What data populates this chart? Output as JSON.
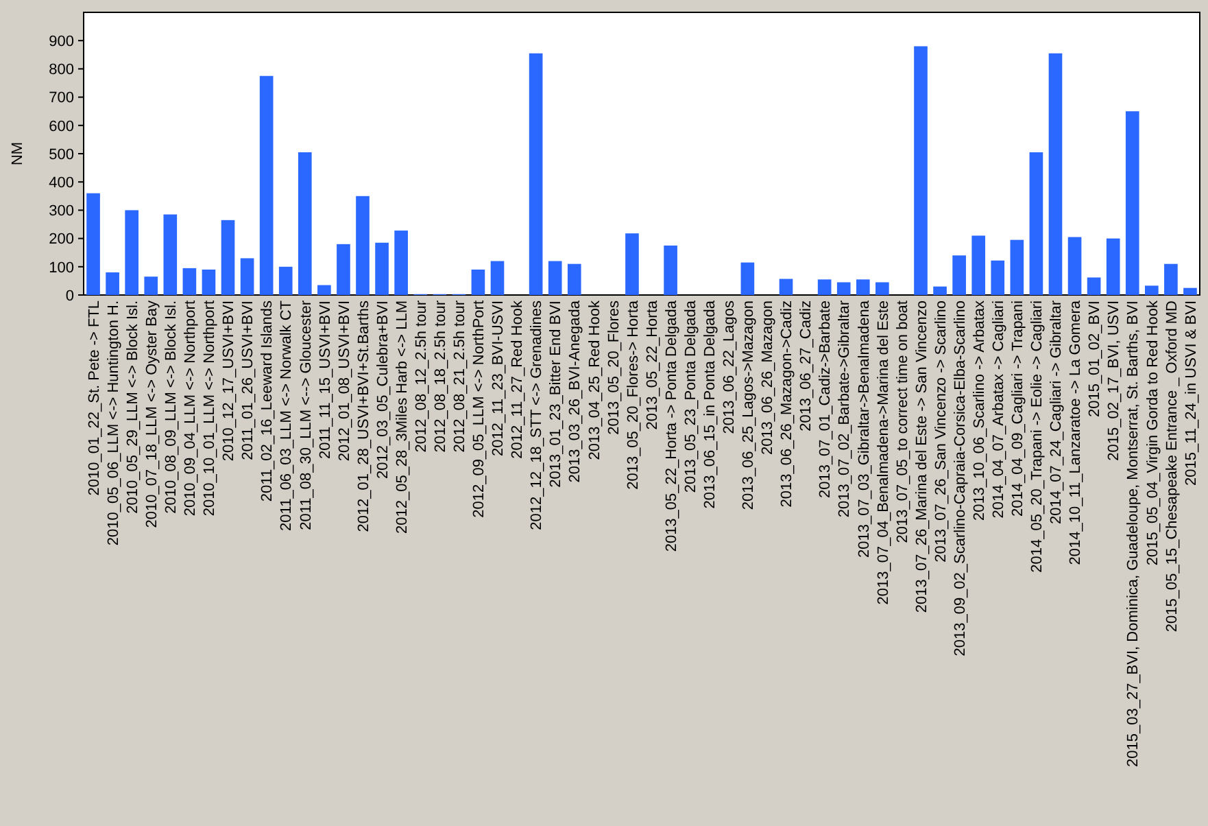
{
  "chart_data": {
    "type": "bar",
    "ylabel": "NM",
    "color": "#2a68ff",
    "ylim": [
      0,
      1000
    ],
    "yticks": [
      0,
      100,
      200,
      300,
      400,
      500,
      600,
      700,
      800,
      900
    ],
    "categories": [
      "2010_01_22_St. Pete -> FTL",
      "2010_05_06_LLM <-> Huntington H.",
      "2010_05_29_LLM <-> Block Isl.",
      "2010_07_18_LLM <-> Oyster Bay",
      "2010_08_09_LLM <-> Block Isl.",
      "2010_09_04_LLM <-> Northport",
      "2010_10_01_LLM <-> Northport",
      "2010_12_17_USVI+BVI",
      "2011_01_26_USVI+BVI",
      "2011_02_16_Leeward Islands",
      "2011_06_03_LLM <-> Norwalk CT",
      "2011_08_30_LLM <--> Gloucester",
      "2011_11_15_USVI+BVI",
      "2012_01_08_USVI+BVI",
      "2012_01_28_USVI+BVI+St.Barths",
      "2012_03_05_Culebra+BVI",
      "2012_05_28_3Miles Harb <-> LLM",
      "2012_08_12_2.5h tour",
      "2012_08_18_2.5h tour",
      "2012_08_21_2.5h tour",
      "2012_09_05_LLM <-> NorthPort",
      "2012_11_23_BVI-USVI",
      "2012_11_27_Red Hook",
      "2012_12_18_STT <-> Grenadines",
      "2013_01_23_Bitter End BVI",
      "2013_03_26_BVI-Anegada",
      "2013_04_25_Red Hook",
      "2013_05_20_Flores",
      "2013_05_20_Flores-> Horta",
      "2013_05_22_Horta",
      "2013_05_22_Horta -> Ponta Delgada",
      "2013_05_23_Ponta Delgada",
      "2013_06_15_in Ponta Delgada",
      "2013_06_22_Lagos",
      "2013_06_25_Lagos->Mazagon",
      "2013_06_26_Mazagon",
      "2013_06_26_Mazagon->Cadiz",
      "2013_06_27_Cadiz",
      "2013_07_01_Cadiz->Barbate",
      "2013_07_02_Barbate->Gibraltar",
      "2013_07_03_Gibraltar->Benalmadena",
      "2013_07_04_Benalmadena->Marina del Este",
      "2013_07_05_to correct time on boat",
      "2013_07_26_Marina del Este -> San Vincenzo",
      "2013_07_26_San Vincenzo -> Scarlino",
      "2013_09_02_Scarlino-Capraia-Corsica-Elba-Scarlino",
      "2013_10_06_Scarlino -> Arbatax",
      "2014_04_07_Arbatax -> Cagliari",
      "2014_04_09_Cagliari -> Trapani",
      "2014_05_20_Trapani -> Eolie -> Cagliari",
      "2014_07_24_Cagliari -> Gibraltar",
      "2014_10_11_Lanzaratoe -> La Gomera",
      "2015_01_02_BVI",
      "2015_02_17_BVI, USVI",
      "2015_03_27_BVI, Dominica, Guadeloupe, Montserrat, St. Barths, BVI",
      "2015_05_04_Virgin Gorda to Red Hook",
      "2015_05_15_Chesapeake Entrance _ Oxford MD",
      "2015_11_24_in USVI & BVI"
    ],
    "values": [
      360,
      80,
      300,
      65,
      285,
      95,
      90,
      265,
      130,
      775,
      100,
      505,
      35,
      180,
      350,
      185,
      228,
      3,
      3,
      3,
      90,
      120,
      0,
      855,
      120,
      110,
      0,
      0,
      218,
      0,
      175,
      0,
      0,
      0,
      115,
      0,
      57,
      0,
      55,
      45,
      55,
      45,
      0,
      880,
      30,
      140,
      210,
      122,
      195,
      505,
      855,
      205,
      62,
      200,
      650,
      33,
      110,
      25
    ]
  }
}
